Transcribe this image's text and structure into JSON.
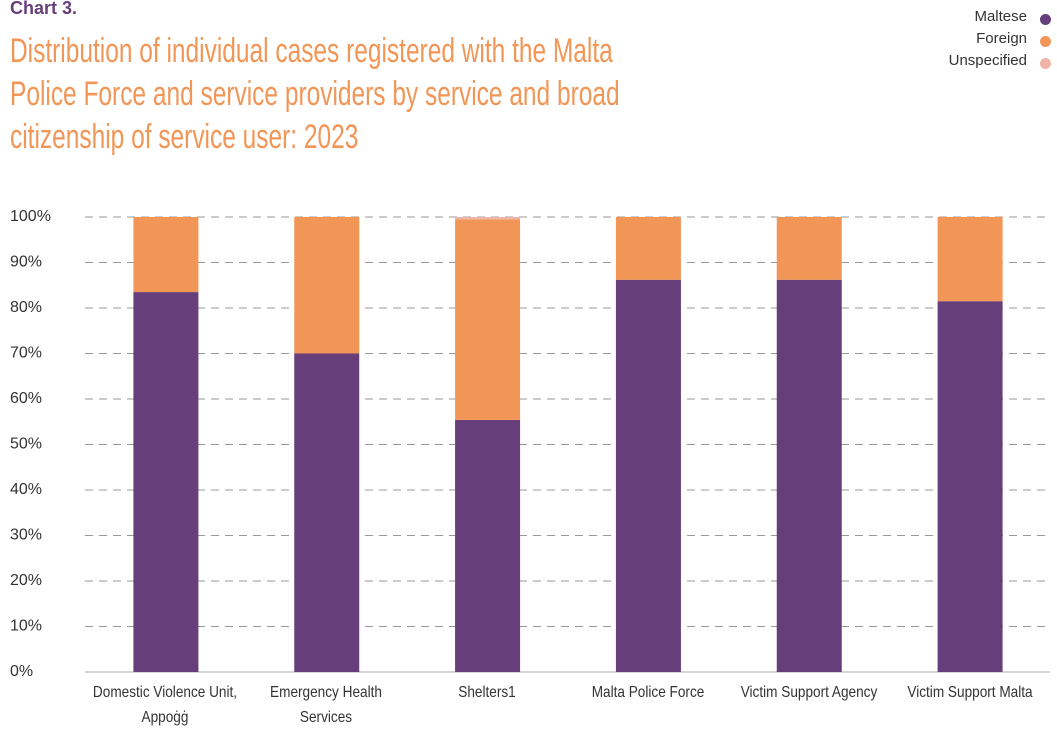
{
  "chart_data": {
    "type": "stacked_bar",
    "label": "Chart 3.",
    "title": "Distribution of individual cases registered with the Malta Police Force and service providers by service and broad citizenship of service user: 2023",
    "categories": [
      "Domestic Violence Unit, Appoġġ",
      "Emergency Health Services",
      "Shelters1",
      "Malta Police Force",
      "Victim Support Agency",
      "Victim Support Malta"
    ],
    "series": [
      {
        "name": "Maltese",
        "color": "#663f7a",
        "values": [
          83.5,
          70,
          55.4,
          86.2,
          86.2,
          81.5
        ]
      },
      {
        "name": "Foreign",
        "color": "#f29657",
        "values": [
          16.5,
          30,
          44.1,
          13.8,
          13.8,
          18.5
        ]
      },
      {
        "name": "Unspecified",
        "color": "#f0b4a6",
        "values": [
          0,
          0,
          0.5,
          0,
          0,
          0
        ]
      }
    ],
    "ylim": [
      0,
      100
    ],
    "yticks": [
      {
        "value": 0,
        "label": "0%"
      },
      {
        "value": 10,
        "label": "10%"
      },
      {
        "value": 20,
        "label": "20%"
      },
      {
        "value": 30,
        "label": "30%"
      },
      {
        "value": 40,
        "label": "40%"
      },
      {
        "value": 50,
        "label": "50%"
      },
      {
        "value": 60,
        "label": "60%"
      },
      {
        "value": 70,
        "label": "70%"
      },
      {
        "value": 80,
        "label": "80%"
      },
      {
        "value": 90,
        "label": "90%"
      },
      {
        "value": 100,
        "label": "100%"
      }
    ],
    "grid": true,
    "legend": "top-right"
  }
}
